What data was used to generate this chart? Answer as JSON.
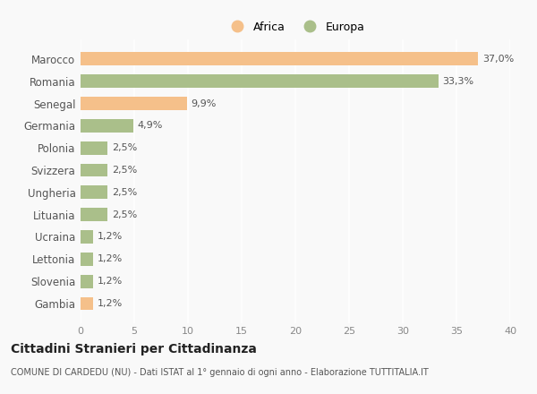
{
  "categories": [
    "Marocco",
    "Romania",
    "Senegal",
    "Germania",
    "Polonia",
    "Svizzera",
    "Ungheria",
    "Lituania",
    "Ucraina",
    "Lettonia",
    "Slovenia",
    "Gambia"
  ],
  "values": [
    37.0,
    33.3,
    9.9,
    4.9,
    2.5,
    2.5,
    2.5,
    2.5,
    1.2,
    1.2,
    1.2,
    1.2
  ],
  "labels": [
    "37,0%",
    "33,3%",
    "9,9%",
    "4,9%",
    "2,5%",
    "2,5%",
    "2,5%",
    "2,5%",
    "1,2%",
    "1,2%",
    "1,2%",
    "1,2%"
  ],
  "colors": [
    "#F5C08A",
    "#AABF8A",
    "#F5C08A",
    "#AABF8A",
    "#AABF8A",
    "#AABF8A",
    "#AABF8A",
    "#AABF8A",
    "#AABF8A",
    "#AABF8A",
    "#AABF8A",
    "#F5C08A"
  ],
  "legend_africa_color": "#F5C08A",
  "legend_europa_color": "#AABF8A",
  "background_color": "#f9f9f9",
  "plot_bg_color": "#f9f9f9",
  "grid_color": "#ffffff",
  "title": "Cittadini Stranieri per Cittadinanza",
  "subtitle": "COMUNE DI CARDEDU (NU) - Dati ISTAT al 1° gennaio di ogni anno - Elaborazione TUTTITALIA.IT",
  "xlim": [
    0,
    40
  ],
  "xticks": [
    0,
    5,
    10,
    15,
    20,
    25,
    30,
    35,
    40
  ]
}
